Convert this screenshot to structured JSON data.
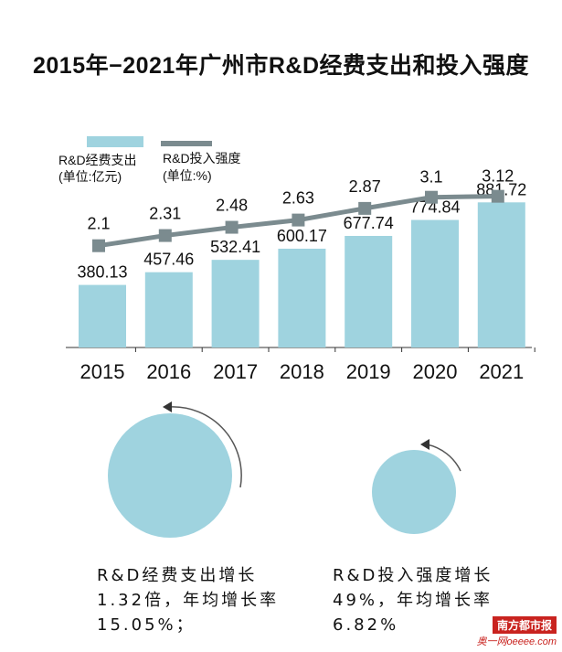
{
  "title": "2015年−2021年广州市R&D经费支出和投入强度",
  "chart_data": {
    "type": "bar+line",
    "categories": [
      "2015",
      "2016",
      "2017",
      "2018",
      "2019",
      "2020",
      "2021"
    ],
    "series": [
      {
        "name": "R&D经费支出",
        "unit_label": "(单位:亿元)",
        "type": "bar",
        "color": "#9fd3df",
        "values": [
          380.13,
          457.46,
          532.41,
          600.17,
          677.74,
          774.84,
          881.72
        ],
        "labels": [
          "380.13",
          "457.46",
          "532.41",
          "600.17",
          "677.74",
          "774.84",
          "881.72"
        ]
      },
      {
        "name": "R&D投入强度",
        "unit_label": "(单位:%)",
        "type": "line",
        "color": "#7b8b8f",
        "values": [
          2.1,
          2.31,
          2.48,
          2.63,
          2.87,
          3.1,
          3.12
        ],
        "labels": [
          "2.1",
          "2.31",
          "2.48",
          "2.63",
          "2.87",
          "3.1",
          "3.12"
        ]
      }
    ],
    "bar_ylim": [
      0,
      1000
    ],
    "line_ylim": [
      0,
      4.7
    ]
  },
  "growth": {
    "left_circle_color": "#9fd3df",
    "right_circle_color": "#9fd3df",
    "left_lines": [
      "R&D经费支出增长",
      "1.32倍，年均增长率",
      "15.05%；"
    ],
    "right_lines": [
      "R&D投入强度增长",
      "49%，年均增长率",
      "6.82%"
    ]
  },
  "watermark": {
    "logo": "南方都市报",
    "site": "奥一网oeeee.com"
  }
}
